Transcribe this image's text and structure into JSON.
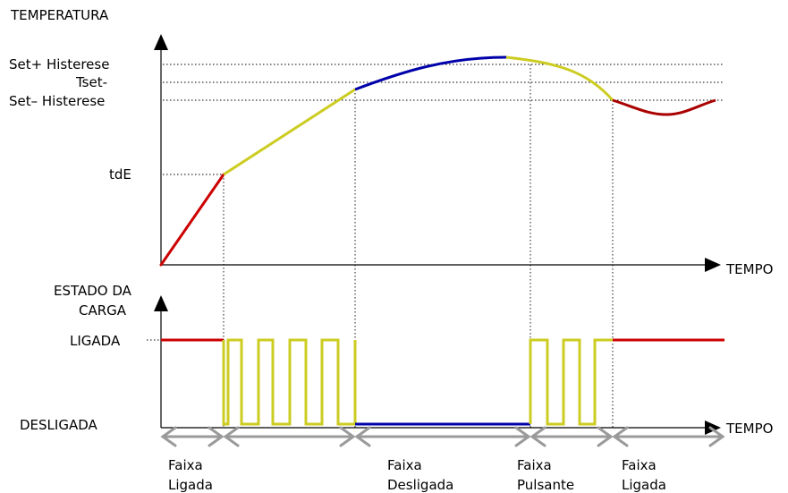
{
  "temperature_axis_label": "TEMPERATURA",
  "time_axis_label_top": "TEMPO",
  "time_axis_label_bottom": "TEMPO",
  "levels": {
    "set_plus": "Set+ Histerese",
    "tset": "Tset-",
    "set_minus": "Set– Histerese",
    "tde": "tdE"
  },
  "load_axis_label_line1": "ESTADO DA",
  "load_axis_label_line2": "CARGA",
  "load_on": "LIGADA",
  "load_off": "DESLIGADA",
  "bands": [
    {
      "line1": "Faixa",
      "line2": "Ligada"
    },
    {
      "line1": "Faixa",
      "line2": "Desligada"
    },
    {
      "line1": "Faixa",
      "line2": "Pulsante"
    },
    {
      "line1": "Faixa",
      "line2": "Ligada"
    }
  ],
  "colors": {
    "on": "#cc0000",
    "pulse": "#cccc22",
    "off": "#0000aa",
    "band_arrow": "#9a9a9a"
  }
}
